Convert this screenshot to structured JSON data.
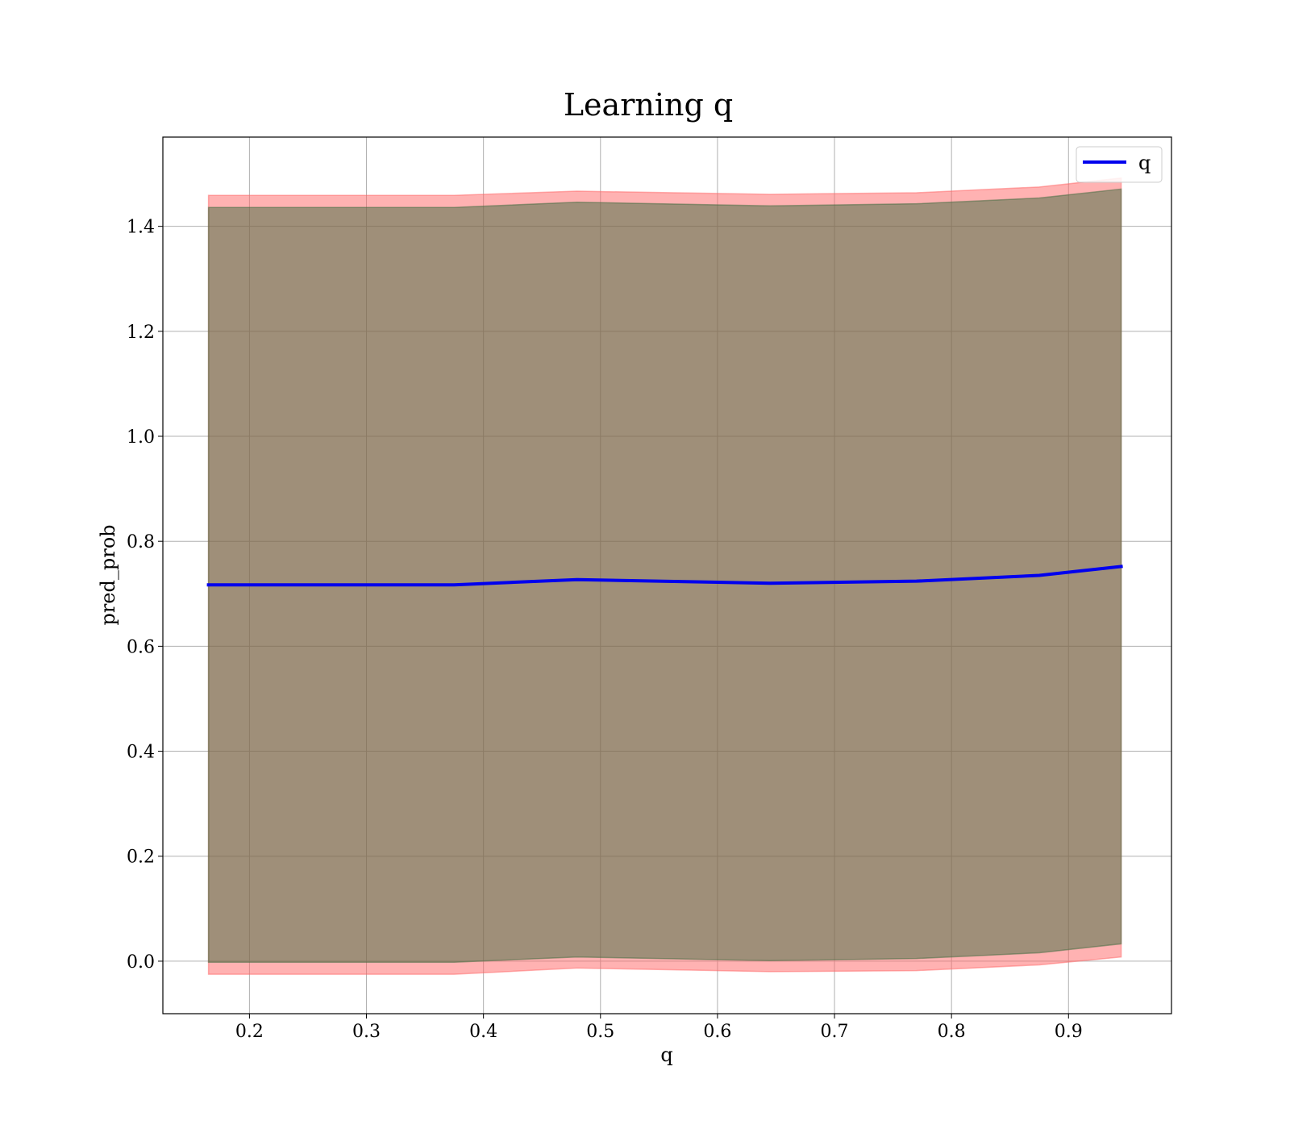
{
  "chart_data": {
    "type": "line",
    "title": "Learning q",
    "xlabel": "q",
    "ylabel": "pred_prob",
    "xlim": [
      0.126,
      0.988
    ],
    "ylim": [
      -0.1,
      1.57
    ],
    "xticks": [
      0.2,
      0.3,
      0.4,
      0.5,
      0.6,
      0.7,
      0.8,
      0.9
    ],
    "xtick_labels": [
      "0.2",
      "0.3",
      "0.4",
      "0.5",
      "0.6",
      "0.7",
      "0.8",
      "0.9"
    ],
    "yticks": [
      0.0,
      0.2,
      0.4,
      0.6,
      0.8,
      1.0,
      1.2,
      1.4
    ],
    "ytick_labels": [
      "0.0",
      "0.2",
      "0.4",
      "0.6",
      "0.8",
      "1.0",
      "1.2",
      "1.4"
    ],
    "grid": true,
    "legend": {
      "placement": "top-right",
      "entries": [
        "q"
      ]
    },
    "x": [
      0.165,
      0.27,
      0.375,
      0.48,
      0.645,
      0.77,
      0.875,
      0.945
    ],
    "series": [
      {
        "name": "q",
        "color": "#0000ee",
        "values": [
          0.717,
          0.717,
          0.717,
          0.727,
          0.72,
          0.724,
          0.735,
          0.752
        ]
      }
    ],
    "bands": [
      {
        "color": "#ff6666",
        "opacity": 0.5,
        "lower": [
          -0.025,
          -0.025,
          -0.025,
          -0.013,
          -0.02,
          -0.018,
          -0.007,
          0.008
        ],
        "upper": [
          1.459,
          1.459,
          1.459,
          1.467,
          1.461,
          1.464,
          1.475,
          1.492
        ]
      },
      {
        "color": "#3f6b3f",
        "opacity": 0.5,
        "lower": [
          -0.002,
          -0.002,
          -0.002,
          0.008,
          0.001,
          0.005,
          0.016,
          0.033
        ],
        "upper": [
          1.436,
          1.436,
          1.436,
          1.446,
          1.439,
          1.443,
          1.454,
          1.471
        ]
      }
    ]
  }
}
